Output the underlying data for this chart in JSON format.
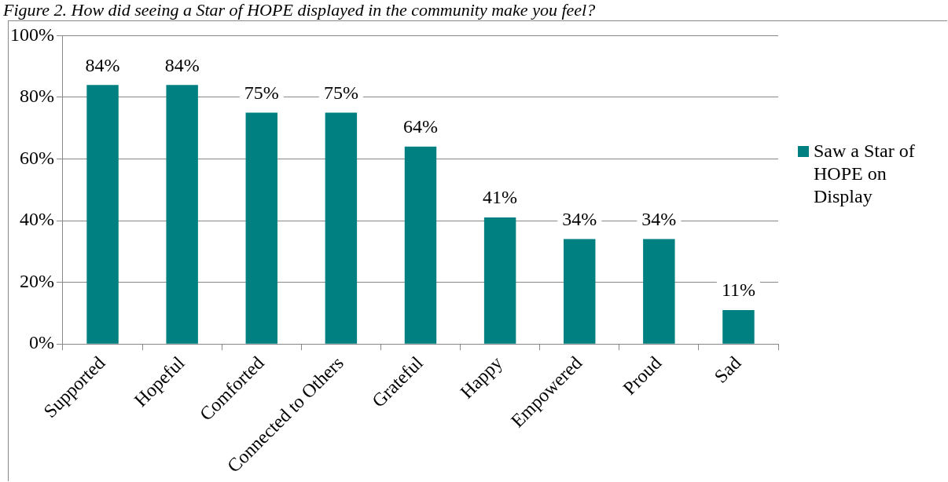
{
  "chart_data": {
    "type": "bar",
    "title": "Figure 2. How did seeing a Star of HOPE displayed in the community make you feel?",
    "categories": [
      "Supported",
      "Hopeful",
      "Comforted",
      "Connected to Others",
      "Grateful",
      "Happy",
      "Empowered",
      "Proud",
      "Sad"
    ],
    "series": [
      {
        "name": "Saw a Star of HOPE on Display",
        "color": "#008080",
        "values": [
          84,
          84,
          75,
          75,
          64,
          41,
          34,
          34,
          11
        ],
        "value_labels": [
          "84%",
          "84%",
          "75%",
          "75%",
          "64%",
          "41%",
          "34%",
          "34%",
          "11%"
        ]
      }
    ],
    "ylim": [
      0,
      100
    ],
    "yticks": [
      {
        "value": 0,
        "label": "0%"
      },
      {
        "value": 20,
        "label": "20%"
      },
      {
        "value": 40,
        "label": "40%"
      },
      {
        "value": 60,
        "label": "60%"
      },
      {
        "value": 80,
        "label": "80%"
      },
      {
        "value": 100,
        "label": "100%"
      }
    ],
    "grid": "y",
    "legend": "right"
  }
}
